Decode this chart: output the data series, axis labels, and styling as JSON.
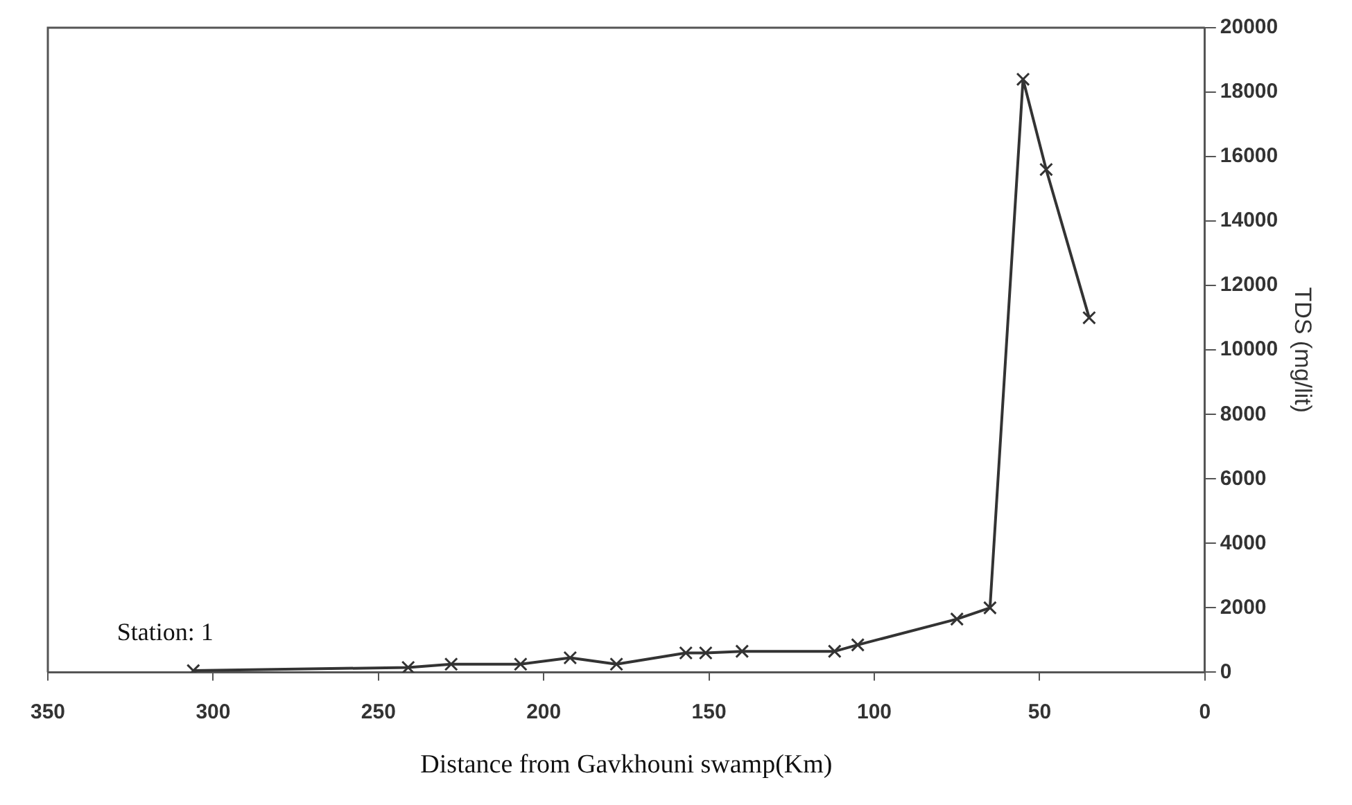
{
  "chart_data": {
    "type": "line",
    "xlabel": "Distance from Gavkhouni swamp(Km)",
    "ylabel": "TDS (mg/lit)",
    "x": [
      306,
      241,
      228,
      207,
      192,
      178,
      157,
      151,
      140,
      112,
      105,
      75,
      65,
      55,
      48,
      35
    ],
    "series": [
      {
        "color": "#333333",
        "values": [
          50,
          150,
          250,
          250,
          450,
          250,
          600,
          600,
          650,
          650,
          850,
          1650,
          2000,
          18400,
          15600,
          11000
        ]
      }
    ],
    "xlim": [
      350,
      0
    ],
    "xticks": [
      350,
      300,
      250,
      200,
      150,
      100,
      50,
      0
    ],
    "ylim": [
      0,
      20000
    ],
    "yticks": [
      0,
      2000,
      4000,
      6000,
      8000,
      10000,
      12000,
      14000,
      16000,
      18000,
      20000
    ],
    "grid": false,
    "legend": false,
    "marker": "cross",
    "line_style": "solid",
    "annotations": [
      {
        "text": "Station: 1",
        "x": 306,
        "y": 50
      }
    ]
  }
}
